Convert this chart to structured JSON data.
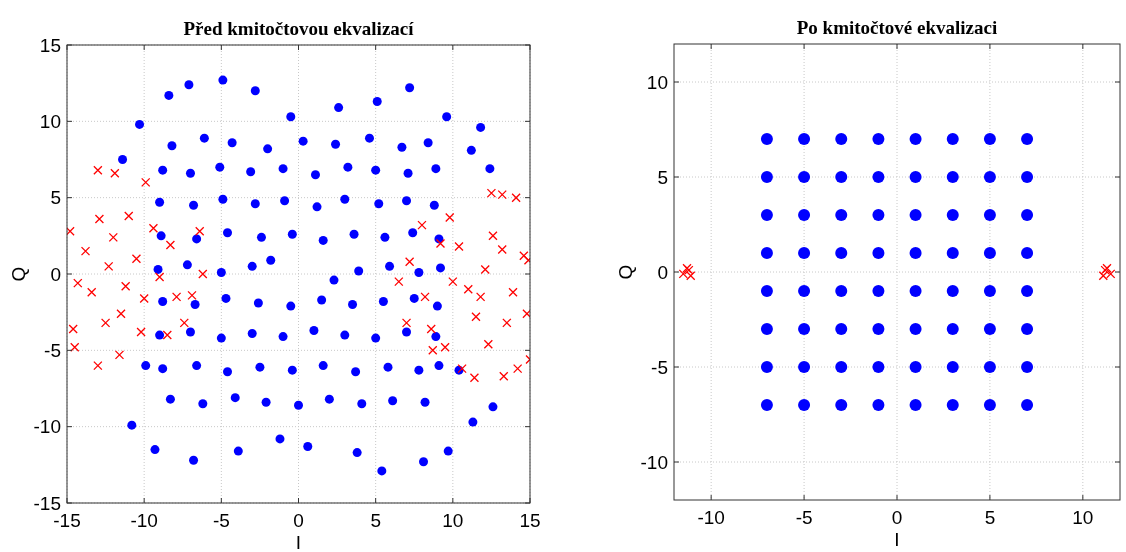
{
  "chart_data": [
    {
      "type": "scatter",
      "title": "Před kmitočtovou ekvalizací",
      "xlabel": "I",
      "ylabel": "Q",
      "xlim": [
        -15,
        15
      ],
      "ylim": [
        -15,
        15
      ],
      "xticks": [
        -15,
        -10,
        -5,
        0,
        5,
        10,
        15
      ],
      "yticks": [
        -15,
        -10,
        -5,
        0,
        5,
        10,
        15
      ],
      "grid": true,
      "series": [
        {
          "color": "#0000ff",
          "marker": "circle",
          "x": [
            -8.2,
            -6.1,
            -4.3,
            -2.0,
            0.3,
            2.4,
            4.6,
            6.7,
            8.4,
            -8.8,
            -7.0,
            -5.1,
            -3.1,
            -1.0,
            1.1,
            3.2,
            5.0,
            7.1,
            8.9,
            -9.0,
            -6.8,
            -4.9,
            -2.8,
            -0.9,
            1.2,
            3.0,
            5.2,
            7.0,
            8.8,
            -8.9,
            -6.6,
            -4.6,
            -2.4,
            -0.4,
            1.6,
            3.6,
            5.6,
            7.4,
            9.1,
            -9.1,
            -7.2,
            -5.0,
            -3.0,
            -1.8,
            2.3,
            3.9,
            5.9,
            7.8,
            9.2,
            -8.8,
            -6.7,
            -4.7,
            -2.6,
            -0.5,
            1.5,
            3.5,
            5.5,
            7.5,
            9.0,
            -9.0,
            -7.0,
            -5.0,
            -3.0,
            -1.0,
            1.0,
            3.0,
            5.0,
            7.0,
            8.9,
            -8.8,
            -6.6,
            -4.6,
            -2.5,
            -0.4,
            1.6,
            3.7,
            5.8,
            7.8,
            9.1,
            -8.3,
            -6.2,
            -4.1,
            -2.1,
            0,
            2.0,
            4.1,
            6.1,
            8.2,
            -7.1,
            -4.9,
            -2.8,
            -0.5,
            2.6,
            5.1,
            7.2,
            9.6,
            11.2,
            12.4,
            -10.3,
            -11.4,
            -10.8,
            -9.3,
            -6.8,
            -3.9,
            0.6,
            3.8,
            5.4,
            8.1,
            9.7,
            11.3,
            12.6,
            -1.2,
            11.8,
            -8.4,
            10.4,
            -9.9
          ],
          "values": [
            8.4,
            8.9,
            8.6,
            8.2,
            8.7,
            8.5,
            8.9,
            8.3,
            8.6,
            6.8,
            6.6,
            7.0,
            6.7,
            6.9,
            6.5,
            7.0,
            6.8,
            6.6,
            6.9,
            4.7,
            4.5,
            4.9,
            4.6,
            4.8,
            4.4,
            4.9,
            4.6,
            4.8,
            4.5,
            2.5,
            2.3,
            2.7,
            2.4,
            2.6,
            2.2,
            2.6,
            2.4,
            2.7,
            2.3,
            0.3,
            0.6,
            0.1,
            0.5,
            0.9,
            -0.4,
            0.2,
            0.5,
            0.1,
            0.4,
            -1.8,
            -2.0,
            -1.6,
            -1.9,
            -2.1,
            -1.7,
            -2.0,
            -1.8,
            -1.6,
            -2.1,
            -4.0,
            -3.8,
            -4.2,
            -3.9,
            -4.1,
            -3.7,
            -4.0,
            -4.2,
            -3.8,
            -4.1,
            -6.2,
            -6.0,
            -6.4,
            -6.1,
            -6.3,
            -6.0,
            -6.4,
            -6.1,
            -6.3,
            -6.0,
            -8.2,
            -8.5,
            -8.1,
            -8.4,
            -8.6,
            -8.2,
            -8.5,
            -8.3,
            -8.4,
            12.4,
            12.7,
            12.0,
            10.3,
            10.9,
            11.3,
            12.2,
            10.3,
            8.1,
            6.9,
            9.8,
            7.5,
            -9.9,
            -11.5,
            -12.2,
            -11.6,
            -11.3,
            -11.7,
            -12.9,
            -12.3,
            -11.6,
            -9.7,
            -8.7,
            -10.8,
            9.6,
            11.7,
            -6.3,
            -6.0
          ]
        },
        {
          "color": "#ff0000",
          "marker": "cross",
          "x": [
            -12.3,
            -11.2,
            -13.4,
            -12.0,
            -10.5,
            -13.8,
            -11.5,
            -10.0,
            -14.3,
            -12.9,
            -9.4,
            -10.2,
            -12.5,
            -13.0,
            -11.9,
            -9.9,
            -14.6,
            -14.5,
            -13.0,
            -11.6,
            -8.3,
            -7.9,
            -6.4,
            -6.2,
            -6.9,
            -7.4,
            -8.5,
            -14.8,
            -9.0,
            -11.0,
            12.1,
            11.0,
            13.2,
            10.4,
            13.9,
            12.6,
            14.6,
            11.5,
            13.5,
            10.0,
            14.8,
            9.8,
            12.5,
            13.2,
            14.1,
            10.6,
            11.4,
            13.3,
            14.2,
            15.0,
            12.3,
            9.5,
            8.6,
            8.2,
            7.2,
            6.5,
            7.0,
            8.0,
            9.2,
            8.7,
            11.8,
            14.9
          ],
          "values": [
            0.5,
            -0.8,
            -1.2,
            2.4,
            1.0,
            1.5,
            -2.6,
            -1.6,
            -0.6,
            3.6,
            3.0,
            -3.8,
            -3.2,
            6.8,
            6.6,
            6.0,
            -3.6,
            -4.8,
            -6.0,
            -5.3,
            1.9,
            -1.5,
            2.8,
            0.0,
            -1.4,
            -3.2,
            -4.0,
            2.8,
            -0.2,
            3.8,
            0.3,
            -1.0,
            1.6,
            1.8,
            -1.2,
            2.5,
            1.2,
            -2.8,
            -3.2,
            -0.5,
            -2.6,
            3.7,
            5.3,
            5.2,
            5.0,
            -6.2,
            -6.8,
            -6.7,
            -6.2,
            -5.6,
            -4.6,
            -4.8,
            -3.6,
            -1.5,
            0.8,
            -0.5,
            -3.2,
            3.2,
            2.0,
            -5.0,
            -1.5,
            0.9
          ]
        }
      ]
    },
    {
      "type": "scatter",
      "title": "Po kmitočtové ekvalizaci",
      "xlabel": "I",
      "ylabel": "Q",
      "xlim": [
        -12,
        12
      ],
      "ylim": [
        -12,
        12
      ],
      "xticks": [
        -10,
        -5,
        0,
        5,
        10
      ],
      "yticks": [
        -10,
        -5,
        0,
        5,
        10
      ],
      "grid": true,
      "series": [
        {
          "color": "#0000ff",
          "marker": "circle",
          "x": [
            -7,
            -5,
            -3,
            -1,
            1,
            3,
            5,
            7,
            -7,
            -5,
            -3,
            -1,
            1,
            3,
            5,
            7,
            -7,
            -5,
            -3,
            -1,
            1,
            3,
            5,
            7,
            -7,
            -5,
            -3,
            -1,
            1,
            3,
            5,
            7,
            -7,
            -5,
            -3,
            -1,
            1,
            3,
            5,
            7,
            -7,
            -5,
            -3,
            -1,
            1,
            3,
            5,
            7,
            -7,
            -5,
            -3,
            -1,
            1,
            3,
            5,
            7,
            -7,
            -5,
            -3,
            -1,
            1,
            3,
            5,
            7
          ],
          "values": [
            7,
            7,
            7,
            7,
            7,
            7,
            7,
            7,
            5,
            5,
            5,
            5,
            5,
            5,
            5,
            5,
            3,
            3,
            3,
            3,
            3,
            3,
            3,
            3,
            1,
            1,
            1,
            1,
            1,
            1,
            1,
            1,
            -1,
            -1,
            -1,
            -1,
            -1,
            -1,
            -1,
            -1,
            -3,
            -3,
            -3,
            -3,
            -3,
            -3,
            -3,
            -3,
            -5,
            -5,
            -5,
            -5,
            -5,
            -5,
            -5,
            -5,
            -7,
            -7,
            -7,
            -7,
            -7,
            -7,
            -7,
            -7
          ]
        },
        {
          "color": "#ff0000",
          "marker": "cross",
          "x": [
            -11.3,
            -11.1,
            -11.5,
            -11.2,
            11.3,
            11.1,
            11.5,
            11.2
          ],
          "values": [
            0.2,
            -0.2,
            -0.1,
            0.1,
            0.2,
            -0.2,
            -0.1,
            0.1
          ]
        }
      ]
    }
  ]
}
